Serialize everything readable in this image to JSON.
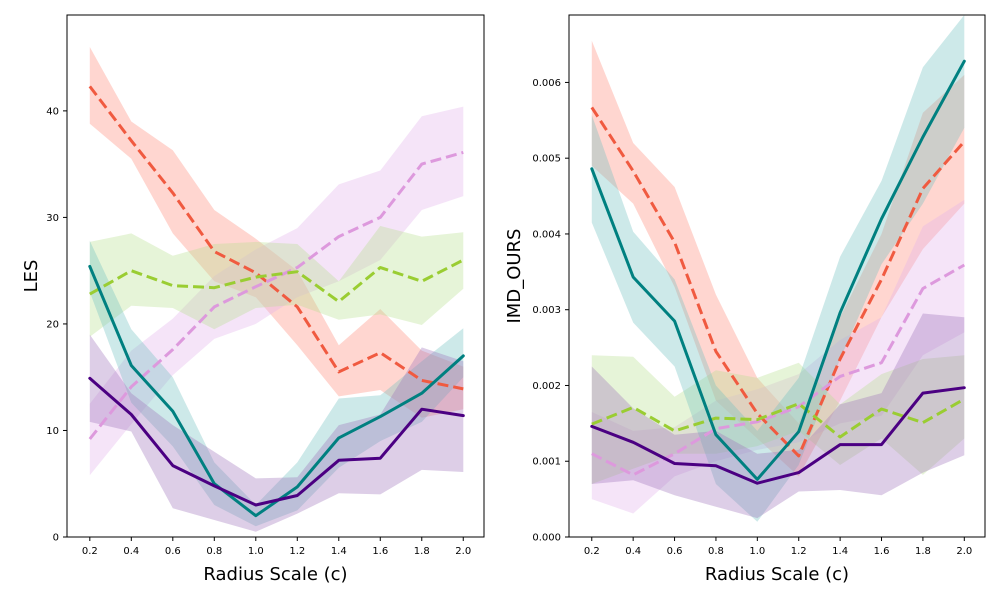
{
  "chart_data": [
    {
      "type": "line",
      "title": "",
      "xlabel": "Radius Scale (c)",
      "ylabel": "LES",
      "x": [
        0.2,
        0.4,
        0.6,
        0.8,
        1.0,
        1.2,
        1.4,
        1.6,
        1.8,
        2.0
      ],
      "xticks": [
        "0.2",
        "0.4",
        "0.6",
        "0.8",
        "1.0",
        "1.2",
        "1.4",
        "1.6",
        "1.8",
        "2.0"
      ],
      "xlim": [
        0.09,
        2.1
      ],
      "ylim": [
        0,
        49
      ],
      "yticks": [
        "0",
        "10",
        "20",
        "30",
        "40"
      ],
      "series": [
        {
          "color": "#f05a40",
          "dash": "dashed",
          "fill_color": "#ff8a78",
          "values": [
            42.3,
            37.2,
            32.3,
            26.8,
            24.8,
            21.6,
            15.5,
            17.3,
            14.7,
            13.9
          ],
          "lower": [
            38.8,
            35.5,
            28.5,
            24.0,
            22.5,
            18.0,
            13.2,
            13.8,
            11.2,
            12.0
          ],
          "upper": [
            46.0,
            39.0,
            36.3,
            30.7,
            28.0,
            25.0,
            18.0,
            21.4,
            17.5,
            16.0
          ]
        },
        {
          "color": "#dd99dd",
          "dash": "dashed",
          "fill_color": "#e2b2ec",
          "values": [
            9.2,
            14.1,
            17.6,
            21.6,
            23.5,
            25.3,
            28.2,
            30.0,
            35.0,
            36.1
          ],
          "lower": [
            5.8,
            10.6,
            15.2,
            18.6,
            20.0,
            22.5,
            24.0,
            26.0,
            30.7,
            32.0
          ],
          "upper": [
            12.5,
            17.5,
            20.5,
            24.5,
            27.0,
            29.0,
            33.1,
            34.4,
            39.5,
            40.4
          ]
        },
        {
          "color": "#9acd32",
          "dash": "dashed",
          "fill_color": "#b8e08e",
          "values": [
            22.8,
            25.0,
            23.6,
            23.4,
            24.4,
            24.9,
            22.1,
            25.3,
            24.0,
            26.0
          ],
          "lower": [
            18.8,
            21.7,
            21.5,
            19.5,
            21.5,
            21.8,
            20.4,
            20.9,
            19.9,
            23.3
          ],
          "upper": [
            27.7,
            28.5,
            26.4,
            27.5,
            27.7,
            27.5,
            24.0,
            29.2,
            28.2,
            28.6
          ]
        },
        {
          "color": "#008080",
          "dash": "solid",
          "fill_color": "#6fc0c0",
          "values": [
            25.4,
            16.1,
            11.8,
            5.0,
            2.0,
            4.7,
            9.3,
            11.3,
            13.5,
            17.0
          ],
          "lower": [
            23.0,
            12.6,
            8.5,
            3.0,
            1.0,
            2.5,
            6.5,
            9.0,
            10.8,
            15.0
          ],
          "upper": [
            27.8,
            19.5,
            15.0,
            7.0,
            3.0,
            7.0,
            13.0,
            13.3,
            16.5,
            19.6
          ]
        },
        {
          "color": "#4b0082",
          "dash": "solid",
          "fill_color": "#9f74bb",
          "values": [
            14.9,
            11.5,
            6.7,
            4.8,
            3.0,
            3.9,
            7.2,
            7.4,
            12.0,
            11.4
          ],
          "lower": [
            10.8,
            9.9,
            2.7,
            1.6,
            0.5,
            2.2,
            4.1,
            4.0,
            6.3,
            6.1
          ],
          "upper": [
            19.0,
            13.5,
            10.5,
            8.0,
            5.5,
            5.6,
            10.5,
            11.5,
            17.8,
            16.5
          ]
        }
      ]
    },
    {
      "type": "line",
      "title": "",
      "xlabel": "Radius Scale (c)",
      "ylabel": "IMD_OURS",
      "x": [
        0.2,
        0.4,
        0.6,
        0.8,
        1.0,
        1.2,
        1.4,
        1.6,
        1.8,
        2.0
      ],
      "xticks": [
        "0.2",
        "0.4",
        "0.6",
        "0.8",
        "1.0",
        "1.2",
        "1.4",
        "1.6",
        "1.8",
        "2.0"
      ],
      "xlim": [
        0.09,
        2.1
      ],
      "ylim": [
        0,
        0.00689
      ],
      "yticks": [
        "0.000",
        "0.001",
        "0.002",
        "0.003",
        "0.004",
        "0.005",
        "0.006"
      ],
      "series": [
        {
          "color": "#f05a40",
          "dash": "dashed",
          "fill_color": "#ff8a78",
          "values": [
            0.00567,
            0.00483,
            0.00389,
            0.00245,
            0.00163,
            0.00107,
            0.00235,
            0.0034,
            0.0046,
            0.00522
          ],
          "lower": [
            0.0049,
            0.0044,
            0.0033,
            0.0018,
            0.0013,
            0.0008,
            0.0018,
            0.0029,
            0.0038,
            0.0044
          ],
          "upper": [
            0.00655,
            0.0052,
            0.00462,
            0.0032,
            0.0021,
            0.0015,
            0.0029,
            0.004,
            0.0056,
            0.0061
          ]
        },
        {
          "color": "#dd99dd",
          "dash": "dashed",
          "fill_color": "#e2b2ec",
          "values": [
            0.0011,
            0.00082,
            0.0011,
            0.00143,
            0.00152,
            0.00172,
            0.00212,
            0.0023,
            0.00328,
            0.00359
          ],
          "lower": [
            0.0005,
            0.00031,
            0.0008,
            0.001,
            0.00115,
            0.00125,
            0.0015,
            0.0016,
            0.0024,
            0.0027
          ],
          "upper": [
            0.00165,
            0.0014,
            0.00145,
            0.0018,
            0.00195,
            0.00215,
            0.0026,
            0.0029,
            0.0041,
            0.00445
          ]
        },
        {
          "color": "#9acd32",
          "dash": "dashed",
          "fill_color": "#b8e08e",
          "values": [
            0.00149,
            0.00171,
            0.0014,
            0.00157,
            0.00155,
            0.00176,
            0.00132,
            0.00169,
            0.00151,
            0.00182
          ],
          "lower": [
            0.0007,
            0.0009,
            0.0011,
            0.0011,
            0.0012,
            0.0014,
            0.00095,
            0.0013,
            0.00082,
            0.0013
          ],
          "upper": [
            0.0024,
            0.00238,
            0.00185,
            0.0022,
            0.0021,
            0.0023,
            0.00175,
            0.00215,
            0.00235,
            0.0024
          ]
        },
        {
          "color": "#008080",
          "dash": "solid",
          "fill_color": "#6fc0c0",
          "values": [
            0.00486,
            0.00343,
            0.00285,
            0.00135,
            0.00076,
            0.00139,
            0.00296,
            0.0042,
            0.00528,
            0.00628
          ],
          "lower": [
            0.00415,
            0.00283,
            0.00225,
            0.0007,
            0.0002,
            0.00095,
            0.00235,
            0.0036,
            0.0044,
            0.0054
          ],
          "upper": [
            0.00557,
            0.00403,
            0.0034,
            0.002,
            0.0014,
            0.0021,
            0.0037,
            0.0047,
            0.0062,
            0.00689
          ]
        },
        {
          "color": "#4b0082",
          "dash": "solid",
          "fill_color": "#9f74bb",
          "values": [
            0.00146,
            0.00125,
            0.00097,
            0.00094,
            0.00071,
            0.00085,
            0.00122,
            0.00122,
            0.0019,
            0.00197
          ],
          "lower": [
            0.0007,
            0.00075,
            0.00055,
            0.0004,
            0.00025,
            0.0006,
            0.00062,
            0.00055,
            0.00085,
            0.00108
          ],
          "upper": [
            0.00225,
            0.0017,
            0.00135,
            0.0014,
            0.0011,
            0.00115,
            0.00175,
            0.0019,
            0.00295,
            0.0029
          ]
        }
      ]
    }
  ]
}
